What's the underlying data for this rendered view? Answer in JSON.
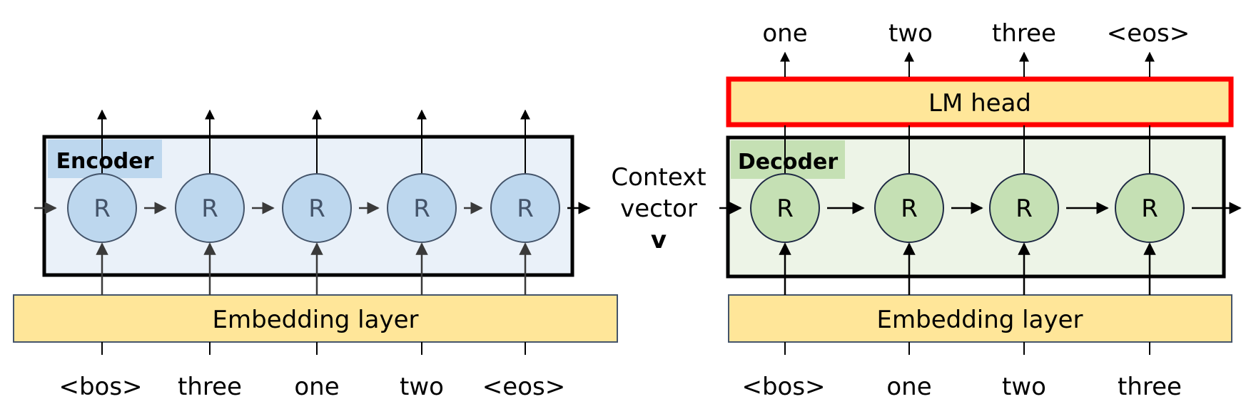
{
  "encoder": {
    "title": "Encoder",
    "cell_label": "R",
    "embedding_label": "Embedding layer",
    "inputs": [
      "<bos>",
      "three",
      "one",
      "two",
      "<eos>"
    ]
  },
  "context": {
    "line1": "Context",
    "line2": "vector",
    "symbol": "v"
  },
  "decoder": {
    "title": "Decoder",
    "cell_label": "R",
    "embedding_label": "Embedding layer",
    "lm_head_label": "LM head",
    "inputs": [
      "<bos>",
      "one",
      "two",
      "three"
    ],
    "outputs": [
      "one",
      "two",
      "three",
      "<eos>"
    ]
  },
  "colors": {
    "encoder_fill": "#eaf1f9",
    "encoder_cell": "#bdd7ee",
    "decoder_fill": "#edf4e7",
    "decoder_cell": "#c5e0b4",
    "embedding_fill": "#ffe699",
    "lm_head_border": "#ff0000",
    "title_encoder_bg": "#bdd7ee",
    "title_decoder_bg": "#c5e0b4"
  }
}
